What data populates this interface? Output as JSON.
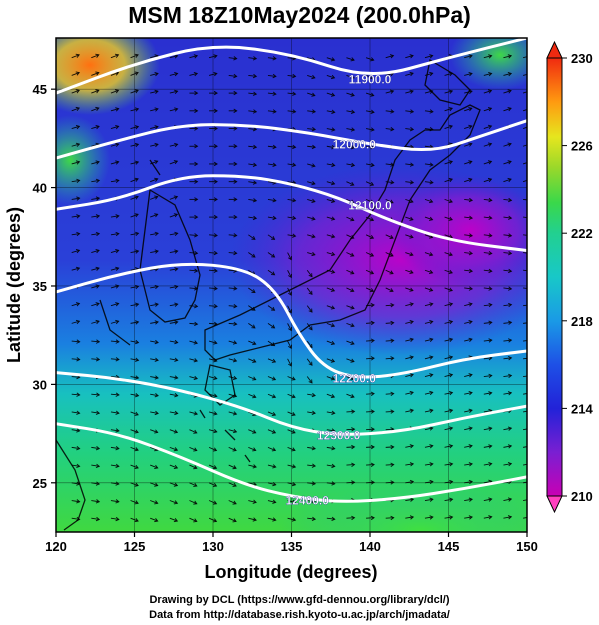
{
  "title": "MSM 18Z10May2024 (200.0hPa)",
  "axes": {
    "xlabel": "Longitude (degrees)",
    "ylabel": "Latitude  (degrees)",
    "xlim": [
      120,
      150
    ],
    "ylim": [
      22.5,
      47.6
    ],
    "xticks": [
      "120",
      "125",
      "130",
      "135",
      "140",
      "145",
      "150"
    ],
    "yticks": [
      "25",
      "30",
      "35",
      "40",
      "45"
    ]
  },
  "colorbar": {
    "min": 210,
    "max": 230,
    "tick_labels": [
      "230",
      "226",
      "222",
      "218",
      "214",
      "210"
    ],
    "tick_values": [
      230,
      226,
      222,
      218,
      214,
      210
    ]
  },
  "contour_labels": [
    "11900.0",
    "12000.0",
    "12100.0",
    "12200.0",
    "12300.0",
    "12400.0"
  ],
  "chart_data": {
    "type": "heatmap",
    "field": "wind speed / temperature shading with geopotential height contours and wind vectors",
    "contours": [
      {
        "value": "11900.0",
        "points": [
          [
            120,
            44.8
          ],
          [
            125,
            46.3
          ],
          [
            130,
            47.3
          ],
          [
            135,
            46.8
          ],
          [
            140,
            45.5
          ],
          [
            145,
            46.6
          ],
          [
            150,
            47.6
          ]
        ]
      },
      {
        "value": "12000.0",
        "points": [
          [
            120,
            41.5
          ],
          [
            124,
            42.4
          ],
          [
            128,
            43.2
          ],
          [
            132,
            43.2
          ],
          [
            136,
            42.8
          ],
          [
            140,
            42.2
          ],
          [
            144,
            41.8
          ],
          [
            147,
            42.6
          ],
          [
            150,
            43.4
          ]
        ]
      },
      {
        "value": "12100.0",
        "points": [
          [
            120,
            38.9
          ],
          [
            124,
            39.4
          ],
          [
            128,
            40.6
          ],
          [
            132,
            40.6
          ],
          [
            135,
            40.2
          ],
          [
            138,
            39.5
          ],
          [
            141,
            38.4
          ],
          [
            145,
            37.3
          ],
          [
            150,
            36.8
          ]
        ]
      },
      {
        "value": "12200.0",
        "points": [
          [
            120,
            34.7
          ],
          [
            124,
            35.6
          ],
          [
            128,
            36.2
          ],
          [
            132,
            35.9
          ],
          [
            134,
            34.8
          ],
          [
            135.5,
            32.5
          ],
          [
            137,
            30.9
          ],
          [
            139,
            30.3
          ],
          [
            142,
            30.5
          ],
          [
            146,
            31.3
          ],
          [
            150,
            31.7
          ]
        ]
      },
      {
        "value": "12300.0",
        "points": [
          [
            120,
            30.6
          ],
          [
            124,
            30.3
          ],
          [
            128,
            29.7
          ],
          [
            132,
            28.8
          ],
          [
            135,
            27.8
          ],
          [
            138,
            27.4
          ],
          [
            142,
            27.6
          ],
          [
            146,
            28.3
          ],
          [
            150,
            28.9
          ]
        ]
      },
      {
        "value": "12400.0",
        "points": [
          [
            120,
            28.0
          ],
          [
            124,
            27.5
          ],
          [
            128,
            26.3
          ],
          [
            132,
            24.9
          ],
          [
            135,
            24.3
          ],
          [
            138,
            24.0
          ],
          [
            142,
            24.2
          ],
          [
            146,
            24.7
          ],
          [
            150,
            25.3
          ]
        ]
      }
    ],
    "contour_label_positions": [
      {
        "label": "11900.0",
        "lon": 140,
        "lat": 45.5
      },
      {
        "label": "12000.0",
        "lon": 139,
        "lat": 42.2
      },
      {
        "label": "12100.0",
        "lon": 140,
        "lat": 39.1
      },
      {
        "label": "12200.0",
        "lon": 139,
        "lat": 30.3
      },
      {
        "label": "12300.0",
        "lon": 138,
        "lat": 27.4
      },
      {
        "label": "12400.0",
        "lon": 136,
        "lat": 24.1
      }
    ]
  },
  "credits": {
    "drawing": "Drawing by DCL (https://www.gfd-dennou.org/library/dcl/)",
    "data": "Data from http://database.rish.kyoto-u.ac.jp/arch/jmadata/"
  }
}
